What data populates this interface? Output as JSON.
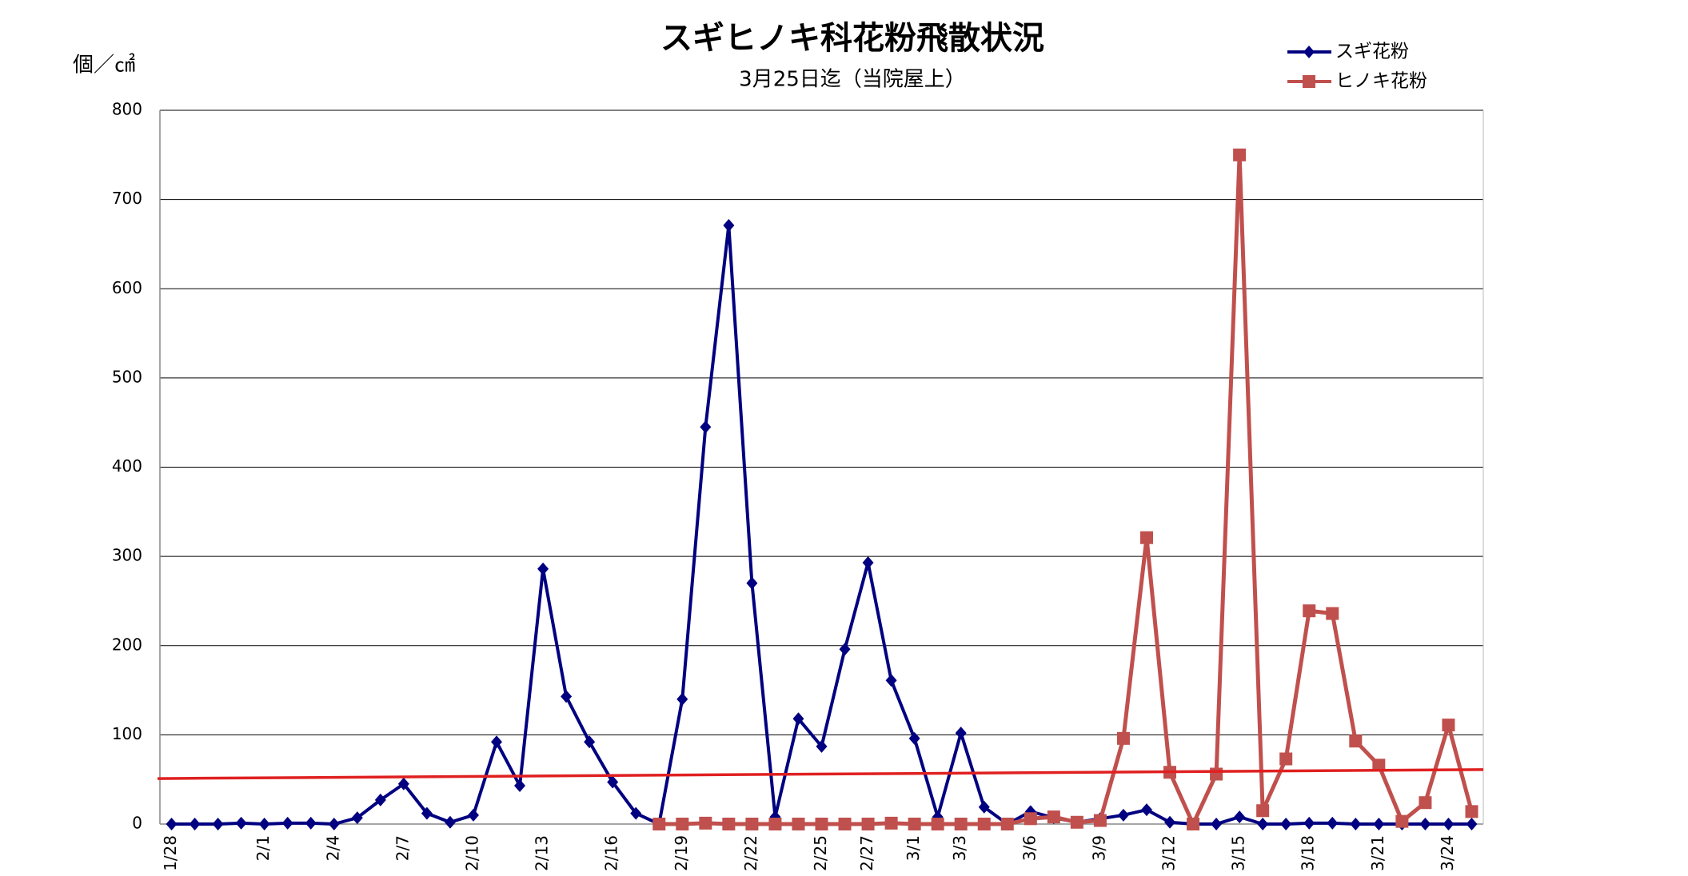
{
  "chart_data": {
    "type": "line",
    "title": "スギヒノキ科花粉飛散状況",
    "subtitle": "3月25日迄（当院屋上）",
    "y_label": "個／㎠",
    "categories": [
      "1/28",
      null,
      null,
      null,
      "2/1",
      null,
      null,
      "2/4",
      null,
      null,
      "2/7",
      null,
      null,
      "2/10",
      null,
      null,
      "2/13",
      null,
      null,
      "2/16",
      null,
      null,
      "2/19",
      null,
      null,
      "2/22",
      null,
      null,
      "2/25",
      null,
      "2/27",
      null,
      "3/1",
      null,
      "3/3",
      null,
      null,
      "3/6",
      null,
      null,
      "3/9",
      null,
      null,
      "3/12",
      null,
      null,
      "3/15",
      null,
      null,
      "3/18",
      null,
      null,
      "3/21",
      null,
      null,
      "3/24",
      null
    ],
    "series": [
      {
        "name": "スギ花粉",
        "color": "#000080",
        "marker": "diamond",
        "values": [
          0,
          0,
          0,
          1,
          0,
          1,
          1,
          0,
          7,
          27,
          45,
          12,
          2,
          10,
          92,
          43,
          286,
          143,
          92,
          47,
          12,
          0,
          140,
          445,
          671,
          270,
          8,
          118,
          87,
          196,
          293,
          161,
          96,
          8,
          102,
          19,
          0,
          14,
          7,
          2,
          6,
          10,
          16,
          2,
          0,
          0,
          8,
          0,
          0,
          1,
          1,
          0,
          0,
          0,
          0,
          0,
          0
        ]
      },
      {
        "name": "ヒノキ花粉",
        "color": "#c0504d",
        "marker": "square",
        "values": [
          null,
          null,
          null,
          null,
          null,
          null,
          null,
          null,
          null,
          null,
          null,
          null,
          null,
          null,
          null,
          null,
          null,
          null,
          null,
          null,
          null,
          0,
          0,
          1,
          0,
          0,
          0,
          0,
          0,
          0,
          0,
          1,
          0,
          0,
          0,
          0,
          0,
          6,
          8,
          2,
          4,
          96,
          321,
          58,
          0,
          56,
          750,
          15,
          73,
          239,
          236,
          93,
          66,
          3,
          24,
          111,
          14
        ]
      }
    ],
    "trend_line": {
      "color": "#e02020",
      "start": 51,
      "end": 61
    },
    "ylim": [
      0,
      800
    ],
    "yticks": [
      0,
      100,
      200,
      300,
      400,
      500,
      600,
      700,
      800
    ],
    "grid": true,
    "legend": "top-right"
  }
}
